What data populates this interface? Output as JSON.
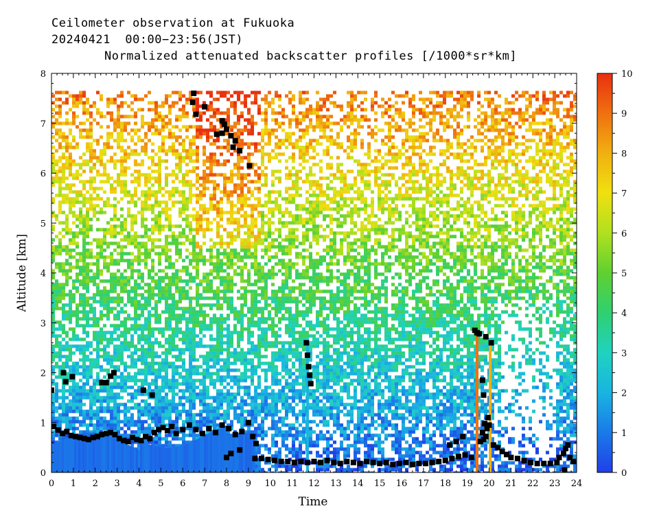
{
  "chart_data": {
    "type": "heatmap",
    "title_lines": [
      "Ceilometer observation at Fukuoka",
      "20240421  00:00−23:56(JST)",
      "Normalized attenuated backscatter profiles [/1000*sr*km]"
    ],
    "xlabel": "Time",
    "ylabel": "Altitude [km]",
    "xlim": [
      0,
      24
    ],
    "ylim": [
      0,
      8
    ],
    "x_ticks": [
      "0",
      "1",
      "2",
      "3",
      "4",
      "5",
      "6",
      "7",
      "8",
      "9",
      "10",
      "11",
      "12",
      "13",
      "14",
      "15",
      "16",
      "17",
      "18",
      "19",
      "20",
      "21",
      "22",
      "23",
      "24"
    ],
    "y_ticks": [
      "0",
      "1",
      "2",
      "3",
      "4",
      "5",
      "6",
      "7",
      "8"
    ],
    "data_top_altitude": 7.65,
    "colorbar": {
      "range": [
        0,
        10
      ],
      "ticks": [
        "0",
        "1",
        "2",
        "3",
        "4",
        "5",
        "6",
        "7",
        "8",
        "9",
        "10"
      ],
      "colors": [
        "#2040e8",
        "#1a7ae8",
        "#19b4e0",
        "#20d2c0",
        "#30d070",
        "#60d030",
        "#b0e020",
        "#f0e010",
        "#f0b010",
        "#f07010",
        "#e83010"
      ]
    },
    "cloud_base_points": [
      [
        0.0,
        1.65
      ],
      [
        0.55,
        2.0
      ],
      [
        0.65,
        1.82
      ],
      [
        0.95,
        1.92
      ],
      [
        2.3,
        1.8
      ],
      [
        2.5,
        1.8
      ],
      [
        2.7,
        1.93
      ],
      [
        2.85,
        2.0
      ],
      [
        4.2,
        1.65
      ],
      [
        4.6,
        1.55
      ],
      [
        0.1,
        0.92
      ],
      [
        0.3,
        0.85
      ],
      [
        0.5,
        0.78
      ],
      [
        0.7,
        0.82
      ],
      [
        0.9,
        0.74
      ],
      [
        1.1,
        0.72
      ],
      [
        1.3,
        0.7
      ],
      [
        1.5,
        0.68
      ],
      [
        1.7,
        0.66
      ],
      [
        1.9,
        0.7
      ],
      [
        2.1,
        0.72
      ],
      [
        2.3,
        0.76
      ],
      [
        2.5,
        0.78
      ],
      [
        2.7,
        0.8
      ],
      [
        2.9,
        0.76
      ],
      [
        3.1,
        0.68
      ],
      [
        3.3,
        0.64
      ],
      [
        3.5,
        0.62
      ],
      [
        3.7,
        0.7
      ],
      [
        3.9,
        0.66
      ],
      [
        4.1,
        0.64
      ],
      [
        4.3,
        0.72
      ],
      [
        4.5,
        0.68
      ],
      [
        4.7,
        0.8
      ],
      [
        4.9,
        0.86
      ],
      [
        5.1,
        0.9
      ],
      [
        5.3,
        0.84
      ],
      [
        5.5,
        0.92
      ],
      [
        5.7,
        0.78
      ],
      [
        6.0,
        0.86
      ],
      [
        6.3,
        0.95
      ],
      [
        6.6,
        0.86
      ],
      [
        6.9,
        0.78
      ],
      [
        7.2,
        0.88
      ],
      [
        7.5,
        0.8
      ],
      [
        7.8,
        0.95
      ],
      [
        8.1,
        0.88
      ],
      [
        8.4,
        0.76
      ],
      [
        8.7,
        0.82
      ],
      [
        9.0,
        1.0
      ],
      [
        9.2,
        0.72
      ],
      [
        9.35,
        0.58
      ],
      [
        8.6,
        0.45
      ],
      [
        8.2,
        0.38
      ],
      [
        8.0,
        0.3
      ],
      [
        6.5,
        7.6
      ],
      [
        6.45,
        7.42
      ],
      [
        6.6,
        7.18
      ],
      [
        7.0,
        7.33
      ],
      [
        7.8,
        7.05
      ],
      [
        7.9,
        6.98
      ],
      [
        7.8,
        6.8
      ],
      [
        8.0,
        6.88
      ],
      [
        8.2,
        6.75
      ],
      [
        8.4,
        6.65
      ],
      [
        7.55,
        6.78
      ],
      [
        8.3,
        6.52
      ],
      [
        8.6,
        6.45
      ],
      [
        9.05,
        6.15
      ],
      [
        9.3,
        0.28
      ],
      [
        9.6,
        0.28
      ],
      [
        9.9,
        0.26
      ],
      [
        10.2,
        0.24
      ],
      [
        10.5,
        0.22
      ],
      [
        10.8,
        0.22
      ],
      [
        11.1,
        0.2
      ],
      [
        11.4,
        0.22
      ],
      [
        11.7,
        0.2
      ],
      [
        12.0,
        0.22
      ],
      [
        12.3,
        0.2
      ],
      [
        12.6,
        0.24
      ],
      [
        12.9,
        0.2
      ],
      [
        13.2,
        0.18
      ],
      [
        13.5,
        0.22
      ],
      [
        13.8,
        0.2
      ],
      [
        14.1,
        0.18
      ],
      [
        14.4,
        0.22
      ],
      [
        14.7,
        0.2
      ],
      [
        15.0,
        0.18
      ],
      [
        15.3,
        0.2
      ],
      [
        15.6,
        0.16
      ],
      [
        15.9,
        0.18
      ],
      [
        16.2,
        0.2
      ],
      [
        16.5,
        0.16
      ],
      [
        16.8,
        0.18
      ],
      [
        17.1,
        0.18
      ],
      [
        17.4,
        0.2
      ],
      [
        17.7,
        0.22
      ],
      [
        18.0,
        0.24
      ],
      [
        18.3,
        0.28
      ],
      [
        18.6,
        0.32
      ],
      [
        18.9,
        0.35
      ],
      [
        19.2,
        0.3
      ],
      [
        11.65,
        2.6
      ],
      [
        11.7,
        2.35
      ],
      [
        11.75,
        2.12
      ],
      [
        11.8,
        1.95
      ],
      [
        11.85,
        1.78
      ],
      [
        19.35,
        2.85
      ],
      [
        19.45,
        2.8
      ],
      [
        19.55,
        2.78
      ],
      [
        19.85,
        2.72
      ],
      [
        20.1,
        2.6
      ],
      [
        19.7,
        1.85
      ],
      [
        19.75,
        1.55
      ],
      [
        19.95,
        1.1
      ],
      [
        19.8,
        0.98
      ],
      [
        20.0,
        0.95
      ],
      [
        19.9,
        0.88
      ],
      [
        19.7,
        0.8
      ],
      [
        19.85,
        0.72
      ],
      [
        19.75,
        0.66
      ],
      [
        19.6,
        0.62
      ],
      [
        18.2,
        0.55
      ],
      [
        18.5,
        0.62
      ],
      [
        18.8,
        0.72
      ],
      [
        20.2,
        0.55
      ],
      [
        20.4,
        0.5
      ],
      [
        20.6,
        0.42
      ],
      [
        20.8,
        0.36
      ],
      [
        21.0,
        0.3
      ],
      [
        21.3,
        0.28
      ],
      [
        21.6,
        0.24
      ],
      [
        21.9,
        0.2
      ],
      [
        22.2,
        0.18
      ],
      [
        22.5,
        0.18
      ],
      [
        22.8,
        0.18
      ],
      [
        23.1,
        0.2
      ],
      [
        23.2,
        0.3
      ],
      [
        23.4,
        0.38
      ],
      [
        23.5,
        0.48
      ],
      [
        23.6,
        0.55
      ],
      [
        23.7,
        0.3
      ],
      [
        23.85,
        0.22
      ],
      [
        23.45,
        0.05
      ]
    ]
  }
}
